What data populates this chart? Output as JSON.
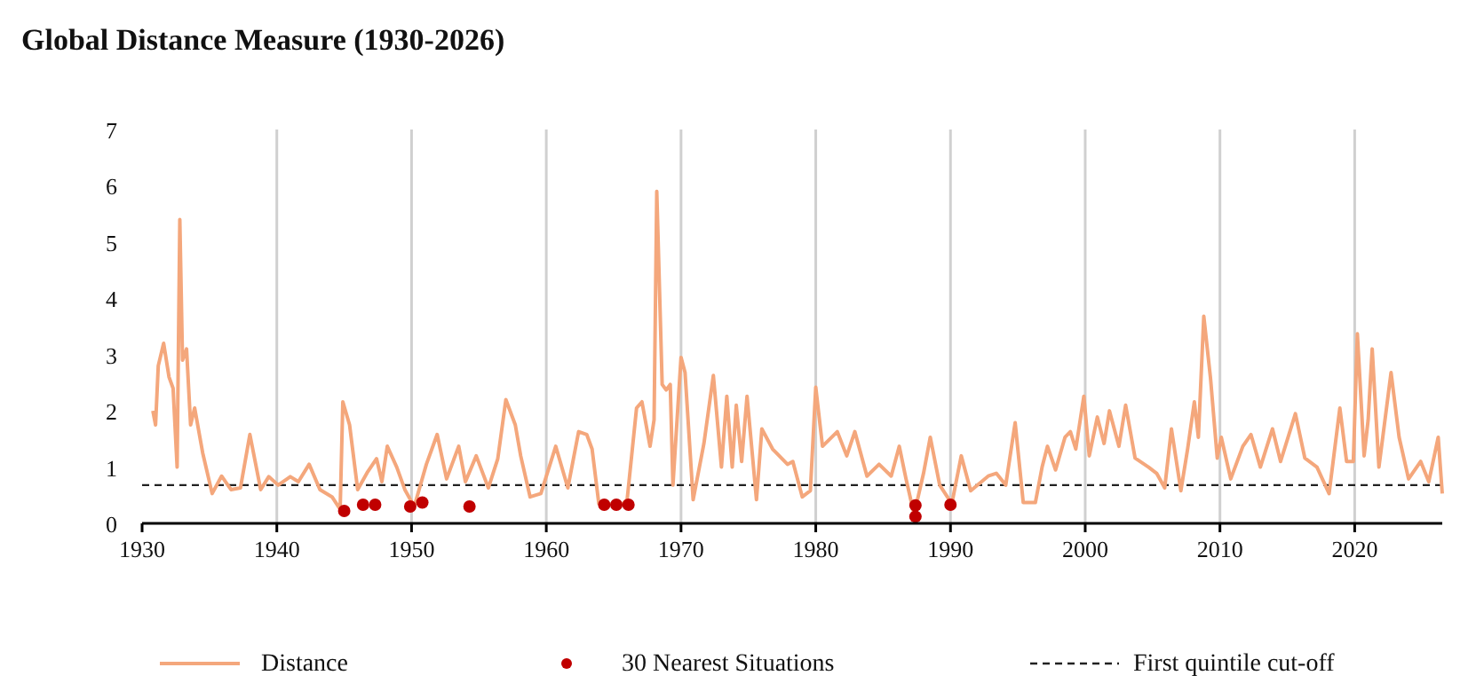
{
  "chart_data": {
    "type": "line",
    "title": "Global Distance Measure (1930-2026)",
    "xlim": [
      1930,
      2026.5
    ],
    "xticks": [
      1930,
      1940,
      1950,
      1960,
      1970,
      1980,
      1990,
      2000,
      2010,
      2020
    ],
    "ylim": [
      0,
      7
    ],
    "yticks": [
      0,
      1,
      2,
      3,
      4,
      5,
      6,
      7
    ],
    "grid": "x",
    "legend": "bottom",
    "series": [
      {
        "name": "Distance",
        "color": "#f4a77c",
        "marker": "none",
        "line_style": "solid",
        "x": [
          1930.8,
          1931,
          1931.2,
          1931.6,
          1932,
          1932.3,
          1932.6,
          1932.8,
          1933,
          1933.3,
          1933.6,
          1933.9,
          1934.5,
          1935.2,
          1935.9,
          1936.6,
          1937.3,
          1938,
          1938.8,
          1939.4,
          1940.1,
          1941,
          1941.6,
          1942.4,
          1943.2,
          1944.1,
          1944.7,
          1944.9,
          1945.4,
          1946,
          1946.7,
          1947.4,
          1947.8,
          1948.2,
          1948.9,
          1949.5,
          1950.2,
          1951.1,
          1951.9,
          1952.6,
          1953.5,
          1954,
          1954.8,
          1955.7,
          1956.4,
          1957,
          1957.7,
          1958.1,
          1958.8,
          1959.6,
          1960.7,
          1961.6,
          1962.4,
          1963,
          1963.4,
          1963.9,
          1965.6,
          1966,
          1966.7,
          1967.1,
          1967.7,
          1968,
          1968.2,
          1968.6,
          1968.9,
          1969.2,
          1969.4,
          1970,
          1970.3,
          1970.9,
          1971.7,
          1972.4,
          1973,
          1973.4,
          1973.8,
          1974.1,
          1974.5,
          1974.9,
          1975.6,
          1976,
          1976.8,
          1977.9,
          1978.3,
          1979,
          1979.6,
          1980,
          1980.5,
          1981.6,
          1982.3,
          1982.9,
          1983.8,
          1984.7,
          1985.6,
          1986.2,
          1986.7,
          1987.3,
          1988,
          1988.5,
          1989.2,
          1990.1,
          1990.8,
          1991.5,
          1992.8,
          1993.4,
          1994.1,
          1994.8,
          1995.4,
          1996.3,
          1996.8,
          1997.2,
          1997.8,
          1998.5,
          1998.9,
          1999.3,
          1999.9,
          2000.3,
          2000.9,
          2001.4,
          2001.8,
          2002.5,
          2003,
          2003.7,
          2004.7,
          2005.3,
          2005.9,
          2006.4,
          2007.1,
          2007.6,
          2008.1,
          2008.4,
          2008.8,
          2009.3,
          2009.8,
          2010.1,
          2010.8,
          2011.7,
          2012.3,
          2013,
          2013.9,
          2014.5,
          2015.6,
          2016.3,
          2017.2,
          2018.1,
          2018.9,
          2019.4,
          2019.9,
          2020.2,
          2020.7,
          2021,
          2021.3,
          2021.8,
          2022.7,
          2023.3,
          2024,
          2024.9,
          2025.5,
          2026.2,
          2026.5
        ],
        "values": [
          2.0,
          1.75,
          2.8,
          3.2,
          2.6,
          2.4,
          1.0,
          5.4,
          2.9,
          3.1,
          1.75,
          2.05,
          1.25,
          0.53,
          0.84,
          0.6,
          0.63,
          1.58,
          0.6,
          0.83,
          0.68,
          0.83,
          0.74,
          1.05,
          0.6,
          0.47,
          0.25,
          2.16,
          1.75,
          0.6,
          0.9,
          1.15,
          0.74,
          1.37,
          1.0,
          0.6,
          0.3,
          1.05,
          1.58,
          0.79,
          1.37,
          0.74,
          1.2,
          0.63,
          1.15,
          2.2,
          1.75,
          1.2,
          0.47,
          0.53,
          1.37,
          0.63,
          1.63,
          1.58,
          1.32,
          0.35,
          0.33,
          0.42,
          2.05,
          2.16,
          1.37,
          1.84,
          5.9,
          2.47,
          2.37,
          2.47,
          0.68,
          2.95,
          2.68,
          0.42,
          1.42,
          2.63,
          1.0,
          2.26,
          1.0,
          2.1,
          1.1,
          2.26,
          0.42,
          1.68,
          1.32,
          1.05,
          1.1,
          0.47,
          0.58,
          2.42,
          1.37,
          1.63,
          1.2,
          1.63,
          0.84,
          1.05,
          0.84,
          1.37,
          0.79,
          0.16,
          0.89,
          1.53,
          0.68,
          0.35,
          1.2,
          0.58,
          0.84,
          0.89,
          0.68,
          1.79,
          0.37,
          0.37,
          1.0,
          1.37,
          0.95,
          1.53,
          1.63,
          1.32,
          2.26,
          1.2,
          1.89,
          1.42,
          2.0,
          1.37,
          2.1,
          1.16,
          1.0,
          0.89,
          0.63,
          1.68,
          0.58,
          1.32,
          2.16,
          1.53,
          3.68,
          2.58,
          1.16,
          1.53,
          0.79,
          1.37,
          1.58,
          1.0,
          1.68,
          1.1,
          1.95,
          1.16,
          1.0,
          0.53,
          2.05,
          1.1,
          1.1,
          3.37,
          1.2,
          1.84,
          3.1,
          1.0,
          2.68,
          1.53,
          0.79,
          1.1,
          0.74,
          1.53,
          0.53
        ]
      },
      {
        "name": "30 Nearest Situations",
        "type": "scatter",
        "color": "#c00000",
        "marker": "circle",
        "x": [
          1945,
          1946.4,
          1947.3,
          1949.9,
          1950.8,
          1954.3,
          1964.3,
          1965.2,
          1966.1,
          1987.4,
          1987.4,
          1990
        ],
        "values": [
          0.22,
          0.33,
          0.33,
          0.3,
          0.37,
          0.3,
          0.33,
          0.33,
          0.33,
          0.32,
          0.12,
          0.33
        ]
      }
    ],
    "ref_lines": [
      {
        "axis": "y",
        "value": 0.68,
        "label": "First quintile cut-off",
        "color": "#222222",
        "line_style": "dashed"
      }
    ]
  }
}
